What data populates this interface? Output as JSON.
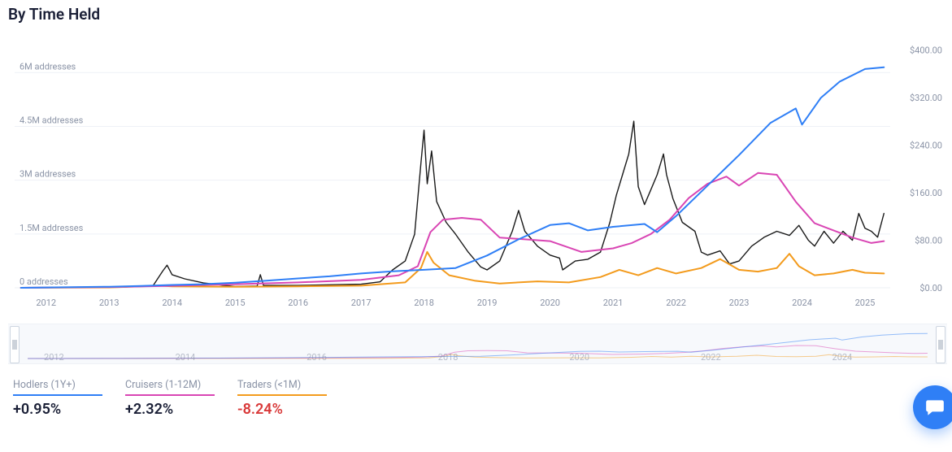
{
  "title": "By Time Held",
  "chart": {
    "type": "line",
    "left_axis": {
      "label_suffix": " addresses",
      "ticks": [
        0,
        1.5,
        3,
        4.5,
        6
      ],
      "tick_labels": [
        "0 addresses",
        "1.5M addresses",
        "3M addresses",
        "4.5M addresses",
        "6M addresses"
      ],
      "min": 0,
      "max": 6.8
    },
    "right_axis": {
      "prefix": "$",
      "ticks": [
        0,
        80,
        160,
        240,
        320,
        400
      ],
      "tick_labels": [
        "$0.00",
        "$80.00",
        "$160.00",
        "$240.00",
        "$320.00",
        "$400.00"
      ],
      "min": 0,
      "max": 410
    },
    "x_axis": {
      "min": 2011.5,
      "max": 2025.4,
      "ticks": [
        2012,
        2013,
        2014,
        2015,
        2016,
        2017,
        2018,
        2019,
        2020,
        2021,
        2022,
        2023,
        2024,
        2025
      ],
      "tick_labels": [
        "2012",
        "2013",
        "2014",
        "2015",
        "2016",
        "2017",
        "2018",
        "2019",
        "2020",
        "2021",
        "2022",
        "2023",
        "2024",
        "2025"
      ]
    },
    "series": {
      "hodlers": {
        "axis": "left",
        "color": "#2f7ff6",
        "stroke_width": 2,
        "points": [
          [
            2011.6,
            0
          ],
          [
            2012,
            0.01
          ],
          [
            2013,
            0.03
          ],
          [
            2013.5,
            0.05
          ],
          [
            2014,
            0.08
          ],
          [
            2014.5,
            0.1
          ],
          [
            2015,
            0.14
          ],
          [
            2015.5,
            0.2
          ],
          [
            2016,
            0.26
          ],
          [
            2016.5,
            0.32
          ],
          [
            2017,
            0.4
          ],
          [
            2017.5,
            0.46
          ],
          [
            2018,
            0.5
          ],
          [
            2018.5,
            0.55
          ],
          [
            2019,
            0.9
          ],
          [
            2019.5,
            1.35
          ],
          [
            2020,
            1.75
          ],
          [
            2020.3,
            1.8
          ],
          [
            2020.6,
            1.6
          ],
          [
            2021,
            1.7
          ],
          [
            2021.5,
            1.78
          ],
          [
            2021.7,
            1.55
          ],
          [
            2022,
            2.0
          ],
          [
            2022.5,
            2.85
          ],
          [
            2023,
            3.7
          ],
          [
            2023.5,
            4.6
          ],
          [
            2023.9,
            5.0
          ],
          [
            2024.0,
            4.55
          ],
          [
            2024.3,
            5.3
          ],
          [
            2024.6,
            5.75
          ],
          [
            2025,
            6.1
          ],
          [
            2025.3,
            6.15
          ]
        ]
      },
      "cruisers": {
        "axis": "left",
        "color": "#d946b4",
        "stroke_width": 2,
        "points": [
          [
            2011.6,
            0
          ],
          [
            2013,
            0.02
          ],
          [
            2013.9,
            0.05
          ],
          [
            2014.5,
            0.08
          ],
          [
            2015,
            0.1
          ],
          [
            2016,
            0.15
          ],
          [
            2017,
            0.22
          ],
          [
            2017.6,
            0.35
          ],
          [
            2017.9,
            0.6
          ],
          [
            2018.1,
            1.55
          ],
          [
            2018.3,
            1.9
          ],
          [
            2018.6,
            1.95
          ],
          [
            2018.9,
            1.9
          ],
          [
            2019.2,
            1.4
          ],
          [
            2019.6,
            1.35
          ],
          [
            2020,
            1.3
          ],
          [
            2020.5,
            1.0
          ],
          [
            2021,
            1.1
          ],
          [
            2021.3,
            1.25
          ],
          [
            2021.6,
            1.5
          ],
          [
            2021.9,
            1.9
          ],
          [
            2022.2,
            2.5
          ],
          [
            2022.5,
            2.9
          ],
          [
            2022.8,
            3.1
          ],
          [
            2023.0,
            2.85
          ],
          [
            2023.3,
            3.2
          ],
          [
            2023.6,
            3.15
          ],
          [
            2023.9,
            2.4
          ],
          [
            2024.2,
            1.8
          ],
          [
            2024.5,
            1.6
          ],
          [
            2024.8,
            1.4
          ],
          [
            2025.1,
            1.25
          ],
          [
            2025.3,
            1.3
          ]
        ]
      },
      "traders": {
        "axis": "left",
        "color": "#f39b1d",
        "stroke_width": 2,
        "points": [
          [
            2011.6,
            0
          ],
          [
            2013,
            0.01
          ],
          [
            2013.8,
            0.06
          ],
          [
            2014.0,
            0.04
          ],
          [
            2015,
            0.03
          ],
          [
            2016,
            0.04
          ],
          [
            2017,
            0.06
          ],
          [
            2017.7,
            0.15
          ],
          [
            2017.95,
            0.55
          ],
          [
            2018.05,
            1.0
          ],
          [
            2018.15,
            0.7
          ],
          [
            2018.4,
            0.35
          ],
          [
            2018.8,
            0.2
          ],
          [
            2019.2,
            0.12
          ],
          [
            2019.8,
            0.18
          ],
          [
            2020.3,
            0.15
          ],
          [
            2020.8,
            0.3
          ],
          [
            2021.1,
            0.5
          ],
          [
            2021.4,
            0.35
          ],
          [
            2021.7,
            0.55
          ],
          [
            2022.0,
            0.4
          ],
          [
            2022.4,
            0.55
          ],
          [
            2022.7,
            0.8
          ],
          [
            2022.85,
            0.65
          ],
          [
            2023.0,
            0.5
          ],
          [
            2023.3,
            0.45
          ],
          [
            2023.6,
            0.55
          ],
          [
            2023.8,
            0.95
          ],
          [
            2023.95,
            0.6
          ],
          [
            2024.2,
            0.35
          ],
          [
            2024.5,
            0.4
          ],
          [
            2024.8,
            0.5
          ],
          [
            2025.0,
            0.42
          ],
          [
            2025.3,
            0.4
          ]
        ]
      },
      "price": {
        "axis": "right",
        "color": "#1a1a1a",
        "stroke_width": 1.4,
        "points": [
          [
            2011.6,
            0.3
          ],
          [
            2012.5,
            0.5
          ],
          [
            2013.2,
            1
          ],
          [
            2013.7,
            4
          ],
          [
            2013.85,
            28
          ],
          [
            2013.92,
            38
          ],
          [
            2014.0,
            22
          ],
          [
            2014.2,
            15
          ],
          [
            2014.5,
            8
          ],
          [
            2015.0,
            2
          ],
          [
            2015.35,
            3
          ],
          [
            2015.4,
            22
          ],
          [
            2015.45,
            4
          ],
          [
            2016.0,
            4
          ],
          [
            2016.5,
            5
          ],
          [
            2017.0,
            6
          ],
          [
            2017.3,
            10
          ],
          [
            2017.5,
            30
          ],
          [
            2017.7,
            45
          ],
          [
            2017.85,
            90
          ],
          [
            2017.95,
            210
          ],
          [
            2018.0,
            265
          ],
          [
            2018.05,
            175
          ],
          [
            2018.12,
            230
          ],
          [
            2018.2,
            145
          ],
          [
            2018.35,
            110
          ],
          [
            2018.5,
            90
          ],
          [
            2018.7,
            60
          ],
          [
            2018.9,
            35
          ],
          [
            2019.0,
            30
          ],
          [
            2019.2,
            45
          ],
          [
            2019.4,
            95
          ],
          [
            2019.5,
            130
          ],
          [
            2019.6,
            95
          ],
          [
            2019.8,
            70
          ],
          [
            2020.0,
            55
          ],
          [
            2020.15,
            50
          ],
          [
            2020.2,
            30
          ],
          [
            2020.4,
            45
          ],
          [
            2020.6,
            48
          ],
          [
            2020.8,
            60
          ],
          [
            2020.95,
            110
          ],
          [
            2021.05,
            155
          ],
          [
            2021.15,
            190
          ],
          [
            2021.25,
            225
          ],
          [
            2021.33,
            280
          ],
          [
            2021.4,
            170
          ],
          [
            2021.5,
            140
          ],
          [
            2021.6,
            165
          ],
          [
            2021.7,
            190
          ],
          [
            2021.8,
            225
          ],
          [
            2021.85,
            190
          ],
          [
            2021.95,
            150
          ],
          [
            2022.1,
            110
          ],
          [
            2022.3,
            95
          ],
          [
            2022.4,
            60
          ],
          [
            2022.5,
            55
          ],
          [
            2022.7,
            62
          ],
          [
            2022.85,
            40
          ],
          [
            2023.0,
            45
          ],
          [
            2023.2,
            70
          ],
          [
            2023.4,
            85
          ],
          [
            2023.6,
            95
          ],
          [
            2023.8,
            88
          ],
          [
            2023.95,
            105
          ],
          [
            2024.1,
            80
          ],
          [
            2024.2,
            70
          ],
          [
            2024.35,
            95
          ],
          [
            2024.5,
            75
          ],
          [
            2024.65,
            95
          ],
          [
            2024.8,
            80
          ],
          [
            2024.9,
            125
          ],
          [
            2025.0,
            100
          ],
          [
            2025.1,
            95
          ],
          [
            2025.2,
            85
          ],
          [
            2025.3,
            125
          ]
        ]
      }
    }
  },
  "mini": {
    "x_ticks": [
      2012,
      2014,
      2016,
      2018,
      2020,
      2022,
      2024
    ],
    "tick_labels": [
      "2012",
      "2014",
      "2016",
      "2018",
      "2020",
      "2022",
      "2024"
    ]
  },
  "legend": [
    {
      "key": "hodlers",
      "label": "Hodlers (1Y+)",
      "value": "+0.95%",
      "color": "#2f7ff6",
      "value_color": "#1a1f36"
    },
    {
      "key": "cruisers",
      "label": "Cruisers (1-12M)",
      "value": "+2.32%",
      "color": "#d946b4",
      "value_color": "#1a1f36"
    },
    {
      "key": "traders",
      "label": "Traders (<1M)",
      "value": "-8.24%",
      "color": "#f39b1d",
      "value_color": "#d93a3a"
    }
  ],
  "chat_icon_color": "#ffffff"
}
